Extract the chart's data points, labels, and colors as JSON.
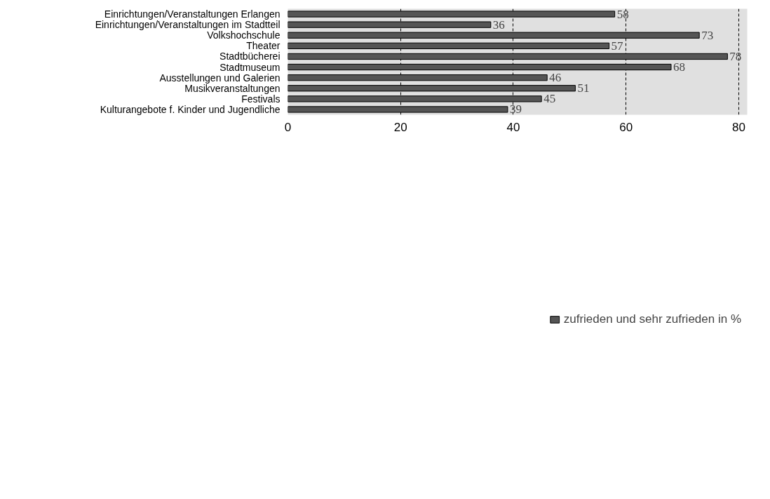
{
  "chart_data": {
    "type": "bar",
    "orientation": "horizontal",
    "categories": [
      "Einrichtungen/Veranstaltungen Erlangen",
      "Einrichtungen/Veranstaltungen im Stadtteil",
      "Volkshochschule",
      "Theater",
      "Stadtbücherei",
      "Stadtmuseum",
      "Ausstellungen und Galerien",
      "Musikveranstaltungen",
      "Festivals",
      "Kulturangebote f. Kinder und Jugendliche"
    ],
    "series": [
      {
        "name": "zufrieden und sehr zufrieden in %",
        "color": "#555555",
        "values": [
          58,
          36,
          73,
          57,
          78,
          68,
          46,
          51,
          45,
          39
        ]
      }
    ],
    "xlim": [
      0,
      81.5
    ],
    "xticks": [
      0,
      20,
      40,
      60,
      80
    ],
    "grid": "x",
    "legend": "bottom",
    "data_labels": true
  }
}
